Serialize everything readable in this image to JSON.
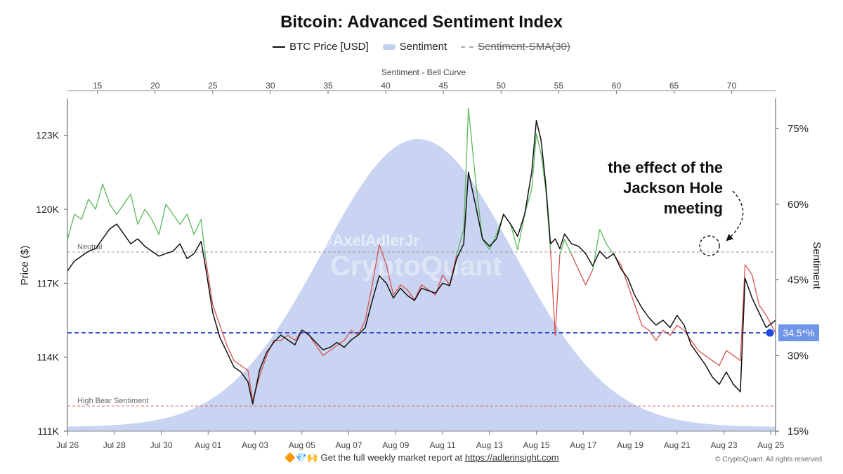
{
  "chart_data": {
    "type": "line",
    "title": "Bitcoin: Advanced Sentiment Index",
    "legend": [
      {
        "label": "BTC Price [USD]",
        "style": "line",
        "color": "#111111"
      },
      {
        "label": "Sentiment",
        "style": "area",
        "color": "#c2cff0"
      },
      {
        "label": "Sentiment-SMA(30)",
        "style": "dashed",
        "color": "#aaaaaa",
        "hidden": true
      }
    ],
    "top_axis": {
      "label": "Sentiment - Bell Curve",
      "ticks": [
        "15",
        "20",
        "25",
        "30",
        "35",
        "40",
        "45",
        "50",
        "55",
        "60",
        "65",
        "70"
      ],
      "range": [
        12.4,
        73.8
      ]
    },
    "left_axis": {
      "label": "Price ($)",
      "ticks": [
        "123K",
        "120K",
        "117K",
        "114K",
        "111K"
      ],
      "tick_values": [
        123000,
        120000,
        117000,
        114000,
        111000
      ],
      "range": [
        111000,
        124500
      ]
    },
    "right_axis": {
      "label": "Sentiment",
      "ticks": [
        "75%",
        "60%",
        "45%",
        "30%",
        "15%"
      ],
      "tick_values": [
        75,
        60,
        45,
        30,
        15
      ],
      "range": [
        15,
        81
      ]
    },
    "x_axis": {
      "ticks": [
        "Jul 26",
        "Jul 28",
        "Jul 30",
        "Aug 01",
        "Aug 03",
        "Aug 05",
        "Aug 07",
        "Aug 09",
        "Aug 11",
        "Aug 13",
        "Aug 15",
        "Aug 17",
        "Aug 19",
        "Aug 21",
        "Aug 23",
        "Aug 25"
      ],
      "range_days": [
        0,
        30.2
      ]
    },
    "reference_lines": [
      {
        "label": "Neutral",
        "value": 50.5,
        "color": "#999999"
      },
      {
        "label": "High Bear Sentiment",
        "value": 20,
        "color": "#e06666"
      },
      {
        "label": "34.5*%",
        "value": 34.5,
        "color": "#1a3fcc"
      }
    ],
    "bell_curve": {
      "mean": 42.8,
      "sd": 8.3
    },
    "annotation": {
      "text": [
        "the effect of the",
        "Jackson Hole",
        "meeting"
      ]
    },
    "sentiment_color_above_neutral": "#5cb85c",
    "sentiment_color_below_neutral": "#d9534f",
    "price": [
      [
        0,
        117.5
      ],
      [
        0.3,
        117.9
      ],
      [
        0.6,
        118.1
      ],
      [
        0.9,
        118.3
      ],
      [
        1.2,
        118.4
      ],
      [
        1.5,
        118.8
      ],
      [
        1.8,
        119.2
      ],
      [
        2.1,
        119.4
      ],
      [
        2.4,
        119.0
      ],
      [
        2.7,
        118.6
      ],
      [
        3.0,
        118.8
      ],
      [
        3.3,
        118.5
      ],
      [
        3.6,
        118.3
      ],
      [
        3.9,
        118.1
      ],
      [
        4.2,
        118.2
      ],
      [
        4.5,
        118.3
      ],
      [
        4.8,
        118.6
      ],
      [
        5.1,
        118.0
      ],
      [
        5.4,
        118.2
      ],
      [
        5.7,
        118.7
      ],
      [
        5.9,
        117.6
      ],
      [
        6.2,
        115.8
      ],
      [
        6.5,
        114.8
      ],
      [
        6.8,
        114.2
      ],
      [
        7.1,
        113.6
      ],
      [
        7.4,
        113.4
      ],
      [
        7.7,
        113.0
      ],
      [
        7.9,
        112.1
      ],
      [
        8.2,
        113.5
      ],
      [
        8.5,
        114.2
      ],
      [
        8.8,
        114.6
      ],
      [
        9.1,
        114.9
      ],
      [
        9.4,
        114.7
      ],
      [
        9.7,
        114.5
      ],
      [
        10.0,
        115.1
      ],
      [
        10.3,
        114.9
      ],
      [
        10.6,
        114.6
      ],
      [
        10.9,
        114.3
      ],
      [
        11.2,
        114.4
      ],
      [
        11.5,
        114.6
      ],
      [
        11.8,
        114.4
      ],
      [
        12.1,
        114.7
      ],
      [
        12.4,
        114.9
      ],
      [
        12.7,
        115.2
      ],
      [
        13.0,
        116.3
      ],
      [
        13.3,
        117.3
      ],
      [
        13.6,
        117.0
      ],
      [
        13.9,
        116.4
      ],
      [
        14.2,
        116.8
      ],
      [
        14.5,
        116.5
      ],
      [
        14.8,
        116.3
      ],
      [
        15.1,
        116.8
      ],
      [
        15.4,
        116.7
      ],
      [
        15.7,
        116.6
      ],
      [
        16.0,
        117.0
      ],
      [
        16.3,
        116.9
      ],
      [
        16.6,
        118.0
      ],
      [
        16.9,
        118.6
      ],
      [
        17.1,
        121.5
      ],
      [
        17.4,
        120.2
      ],
      [
        17.7,
        118.8
      ],
      [
        18.0,
        118.5
      ],
      [
        18.3,
        118.8
      ],
      [
        18.6,
        119.8
      ],
      [
        18.9,
        119.4
      ],
      [
        19.2,
        118.9
      ],
      [
        19.5,
        119.8
      ],
      [
        19.8,
        121.5
      ],
      [
        20.0,
        123.6
      ],
      [
        20.2,
        122.8
      ],
      [
        20.4,
        121.0
      ],
      [
        20.6,
        118.6
      ],
      [
        20.8,
        118.8
      ],
      [
        21.0,
        118.4
      ],
      [
        21.2,
        119.0
      ],
      [
        21.5,
        118.6
      ],
      [
        21.8,
        118.5
      ],
      [
        22.1,
        118.2
      ],
      [
        22.4,
        117.7
      ],
      [
        22.7,
        118.3
      ],
      [
        23.0,
        118.0
      ],
      [
        23.3,
        118.2
      ],
      [
        23.6,
        117.6
      ],
      [
        23.9,
        117.2
      ],
      [
        24.2,
        116.5
      ],
      [
        24.5,
        116.0
      ],
      [
        24.8,
        115.6
      ],
      [
        25.1,
        115.3
      ],
      [
        25.4,
        115.5
      ],
      [
        25.7,
        115.2
      ],
      [
        26.0,
        115.7
      ],
      [
        26.3,
        115.3
      ],
      [
        26.6,
        114.5
      ],
      [
        26.9,
        114.1
      ],
      [
        27.2,
        113.7
      ],
      [
        27.5,
        113.2
      ],
      [
        27.8,
        112.9
      ],
      [
        28.1,
        113.4
      ],
      [
        28.4,
        112.9
      ],
      [
        28.7,
        112.6
      ],
      [
        28.9,
        117.2
      ],
      [
        29.2,
        116.4
      ],
      [
        29.5,
        115.8
      ],
      [
        29.8,
        115.2
      ],
      [
        30.2,
        115.5
      ]
    ],
    "sentiment": [
      [
        0,
        53
      ],
      [
        0.3,
        58
      ],
      [
        0.6,
        57
      ],
      [
        0.9,
        61
      ],
      [
        1.2,
        59
      ],
      [
        1.5,
        64
      ],
      [
        1.8,
        60
      ],
      [
        2.1,
        58
      ],
      [
        2.4,
        60
      ],
      [
        2.7,
        62
      ],
      [
        3.0,
        56
      ],
      [
        3.3,
        59
      ],
      [
        3.6,
        57
      ],
      [
        3.9,
        54
      ],
      [
        4.2,
        60
      ],
      [
        4.5,
        58
      ],
      [
        4.8,
        56
      ],
      [
        5.1,
        58
      ],
      [
        5.4,
        54
      ],
      [
        5.7,
        57
      ],
      [
        5.9,
        49
      ],
      [
        6.2,
        40
      ],
      [
        6.5,
        36
      ],
      [
        6.8,
        32
      ],
      [
        7.1,
        29
      ],
      [
        7.4,
        28
      ],
      [
        7.7,
        27
      ],
      [
        7.9,
        21
      ],
      [
        8.2,
        26
      ],
      [
        8.5,
        30
      ],
      [
        8.8,
        33
      ],
      [
        9.1,
        33
      ],
      [
        9.4,
        34
      ],
      [
        9.7,
        33
      ],
      [
        10.0,
        35
      ],
      [
        10.3,
        34
      ],
      [
        10.6,
        32
      ],
      [
        10.9,
        30
      ],
      [
        11.2,
        31
      ],
      [
        11.5,
        32
      ],
      [
        11.8,
        33
      ],
      [
        12.1,
        35
      ],
      [
        12.4,
        34
      ],
      [
        12.7,
        37
      ],
      [
        13.0,
        44
      ],
      [
        13.3,
        52
      ],
      [
        13.6,
        48
      ],
      [
        13.9,
        42
      ],
      [
        14.2,
        44
      ],
      [
        14.5,
        43
      ],
      [
        14.8,
        41
      ],
      [
        15.1,
        44
      ],
      [
        15.4,
        43
      ],
      [
        15.7,
        42
      ],
      [
        16.0,
        46
      ],
      [
        16.3,
        44
      ],
      [
        16.6,
        50
      ],
      [
        16.9,
        55
      ],
      [
        17.1,
        79
      ],
      [
        17.4,
        65
      ],
      [
        17.7,
        53
      ],
      [
        18.0,
        51
      ],
      [
        18.3,
        54
      ],
      [
        18.6,
        58
      ],
      [
        18.9,
        56
      ],
      [
        19.2,
        51
      ],
      [
        19.5,
        58
      ],
      [
        19.8,
        63
      ],
      [
        20.0,
        74
      ],
      [
        20.2,
        70
      ],
      [
        20.4,
        63
      ],
      [
        20.6,
        51
      ],
      [
        20.8,
        34
      ],
      [
        21.0,
        50
      ],
      [
        21.2,
        53
      ],
      [
        21.5,
        50
      ],
      [
        21.8,
        47
      ],
      [
        22.1,
        44
      ],
      [
        22.4,
        47
      ],
      [
        22.7,
        55
      ],
      [
        23.0,
        52
      ],
      [
        23.3,
        50
      ],
      [
        23.6,
        48
      ],
      [
        23.9,
        44
      ],
      [
        24.2,
        40
      ],
      [
        24.5,
        36
      ],
      [
        24.8,
        35
      ],
      [
        25.1,
        33
      ],
      [
        25.4,
        35
      ],
      [
        25.7,
        34
      ],
      [
        26.0,
        36
      ],
      [
        26.3,
        35
      ],
      [
        26.6,
        33
      ],
      [
        26.9,
        31
      ],
      [
        27.2,
        30
      ],
      [
        27.5,
        29
      ],
      [
        27.8,
        28
      ],
      [
        28.1,
        31
      ],
      [
        28.4,
        30
      ],
      [
        28.7,
        29
      ],
      [
        28.9,
        48
      ],
      [
        29.2,
        46
      ],
      [
        29.5,
        40
      ],
      [
        29.8,
        38
      ],
      [
        30.2,
        34.5
      ]
    ]
  },
  "watermark": {
    "handle": "@AxelAdlerJr",
    "brand": "CryptoQuant"
  },
  "footer": {
    "emoji": "🔶💎🙌",
    "text": "Get the full weekly market report at",
    "link": "https://adlerinsight.com",
    "copyright": "© CryptoQuant. All rights reserved"
  }
}
